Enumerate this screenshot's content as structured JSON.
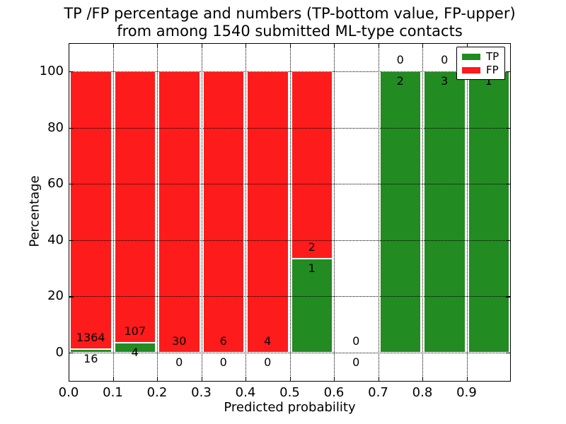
{
  "chart_data": {
    "type": "bar",
    "stacked": true,
    "normalized": "each bar stacked to 100%",
    "title": "TP /FP percentage and numbers (TP-bottom value, FP-upper)",
    "subtitle": "from among 1540 submitted ML-type contacts",
    "xlabel": "Predicted probability",
    "ylabel": "Percentage",
    "categories": [
      "0.0-0.1",
      "0.1-0.2",
      "0.2-0.3",
      "0.3-0.4",
      "0.4-0.5",
      "0.5-0.6",
      "0.6-0.7",
      "0.7-0.8",
      "0.8-0.9",
      "0.9-1.0"
    ],
    "x_ticks": [
      "0.0",
      "0.1",
      "0.2",
      "0.3",
      "0.4",
      "0.5",
      "0.6",
      "0.7",
      "0.8",
      "0.9"
    ],
    "y_ticks": [
      0,
      20,
      40,
      60,
      80,
      100
    ],
    "ylim": [
      -12,
      110
    ],
    "grid": "dotted both axes",
    "series": [
      {
        "name": "TP",
        "color": "#228B22",
        "values": [
          16,
          4,
          0,
          0,
          0,
          1,
          0,
          2,
          3,
          1
        ]
      },
      {
        "name": "FP",
        "color": "#FE1B1B",
        "values": [
          1364,
          107,
          30,
          6,
          4,
          2,
          0,
          0,
          0,
          0
        ]
      }
    ],
    "bar_label_rule": "FP count printed just above top of TP segment, TP count printed just below it",
    "legend": {
      "position": "upper right",
      "items": [
        "TP",
        "FP"
      ]
    },
    "total_contacts": 1540
  },
  "colors": {
    "tp_green": "#228B22",
    "fp_red": "#FE1B1B",
    "axis": "#000000",
    "background": "#ffffff"
  }
}
